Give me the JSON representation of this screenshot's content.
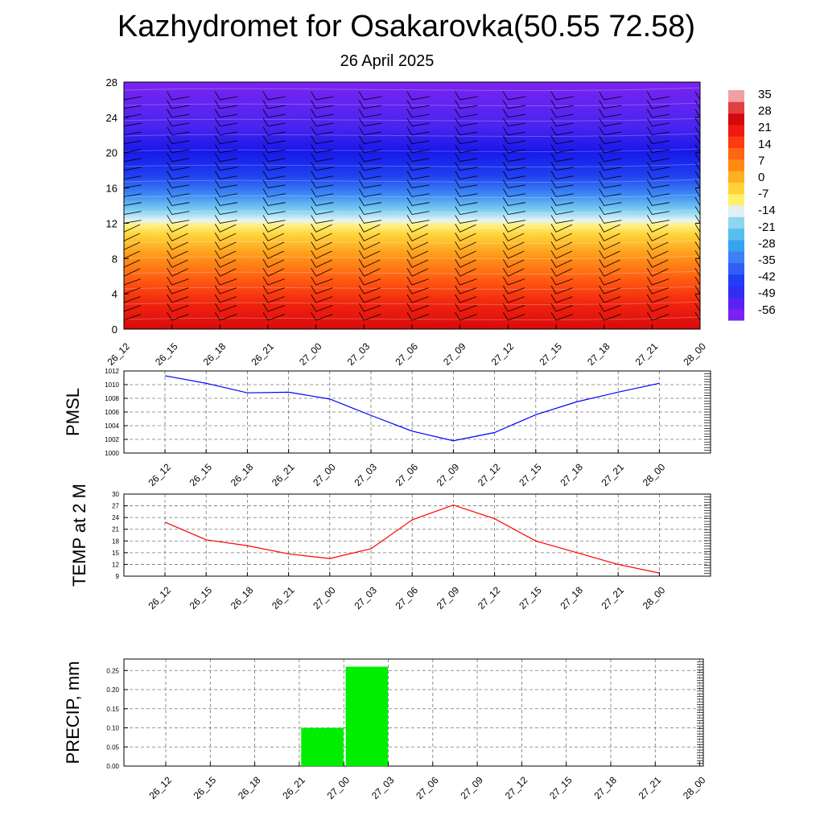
{
  "title": "Kazhydromet for Osakarovka(50.55 72.58)",
  "subtitle": "26 April 2025",
  "colors": {
    "pmsl_line": "#0000ff",
    "temp_line": "#ff0000",
    "precip_bar": "#00ee00",
    "colorbar": [
      "#7b22f0",
      "#5a22f0",
      "#2f2ff2",
      "#1f3ff4",
      "#2f5ff5",
      "#3f7ff5",
      "#35a3f0",
      "#55c0ec",
      "#8fd5f0",
      "#e0f0f4",
      "#fff06a",
      "#ffd23a",
      "#ffb021",
      "#ff8a12",
      "#ff6612",
      "#ff3a10",
      "#f0190f",
      "#d6080e",
      "#e04040",
      "#f0a0a0"
    ]
  },
  "chart_data": [
    {
      "type": "heatmap",
      "name": "cross-section",
      "x_ticks": [
        "26_12",
        "26_15",
        "26_18",
        "26_21",
        "27_00",
        "27_03",
        "27_06",
        "27_09",
        "27_12",
        "27_15",
        "27_18",
        "27_21",
        "28_00"
      ],
      "y_ticks": [
        "0",
        "4",
        "8",
        "12",
        "16",
        "20",
        "24",
        "28"
      ],
      "ylim": [
        0,
        28
      ],
      "colorbar_labels": [
        "35",
        "28",
        "21",
        "14",
        "7",
        "0",
        "-7",
        "-14",
        "-21",
        "-28",
        "-35",
        "-42",
        "-49",
        "-56"
      ],
      "grid": false
    },
    {
      "type": "line",
      "name": "pmsl",
      "ylabel": "PMSL",
      "categories": [
        "26_12",
        "26_15",
        "26_18",
        "26_21",
        "27_00",
        "27_03",
        "27_06",
        "27_09",
        "27_12",
        "27_15",
        "27_18",
        "27_21",
        "28_00"
      ],
      "values": [
        1011.3,
        1010.2,
        1008.8,
        1008.9,
        1007.9,
        1005.5,
        1003.2,
        1001.8,
        1003.0,
        1005.6,
        1007.5,
        1008.9,
        1010.2
      ],
      "ylim": [
        1000,
        1012
      ],
      "y_ticks": [
        "1000",
        "1002",
        "1004",
        "1006",
        "1008",
        "1010",
        "1012"
      ],
      "grid": true
    },
    {
      "type": "line",
      "name": "temp",
      "ylabel": "TEMP at 2 M",
      "categories": [
        "26_12",
        "26_15",
        "26_18",
        "26_21",
        "27_00",
        "27_03",
        "27_06",
        "27_09",
        "27_12",
        "27_15",
        "27_18",
        "27_21",
        "28_00"
      ],
      "values": [
        22.8,
        18.3,
        16.8,
        14.7,
        13.5,
        16.0,
        23.4,
        27.2,
        23.7,
        18.0,
        15.0,
        12.0,
        9.8
      ],
      "ylim": [
        9,
        30
      ],
      "y_ticks": [
        "9",
        "12",
        "15",
        "18",
        "21",
        "24",
        "27",
        "30"
      ],
      "grid": true
    },
    {
      "type": "bar",
      "name": "precip",
      "ylabel": "PRECIP, mm",
      "categories": [
        "26_12",
        "26_15",
        "26_18",
        "26_21",
        "27_00",
        "27_03",
        "27_06",
        "27_09",
        "27_12",
        "27_15",
        "27_18",
        "27_21",
        "28_00"
      ],
      "values": [
        0,
        0,
        0,
        0,
        0.1,
        0.26,
        0,
        0,
        0,
        0,
        0,
        0,
        0
      ],
      "ylim": [
        0,
        0.28
      ],
      "y_ticks": [
        "0.00",
        "0.05",
        "0.10",
        "0.15",
        "0.20",
        "0.25"
      ],
      "grid": true
    }
  ]
}
